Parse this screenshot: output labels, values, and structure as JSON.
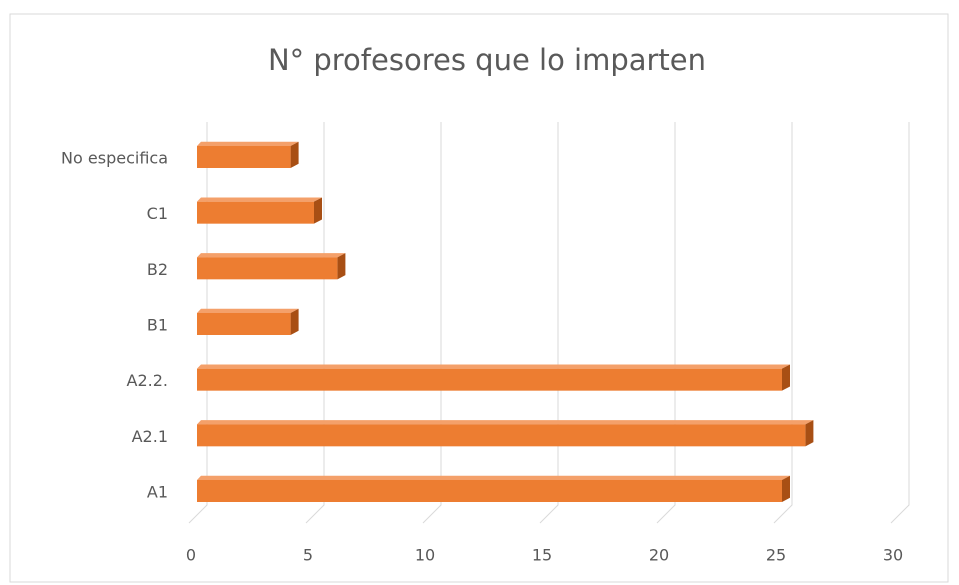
{
  "chart_data": {
    "type": "bar",
    "orientation": "horizontal",
    "title": "N° profesores que lo imparten",
    "categories": [
      "A1",
      "A2.1",
      "A2.2.",
      "B1",
      "B2",
      "C1",
      "No especifica"
    ],
    "values": [
      25,
      26,
      25,
      4,
      6,
      5,
      4
    ],
    "color": "#ed7d31",
    "xlim": [
      0,
      30
    ],
    "xticks": [
      0,
      5,
      10,
      15,
      20,
      25,
      30
    ],
    "grid": true
  }
}
